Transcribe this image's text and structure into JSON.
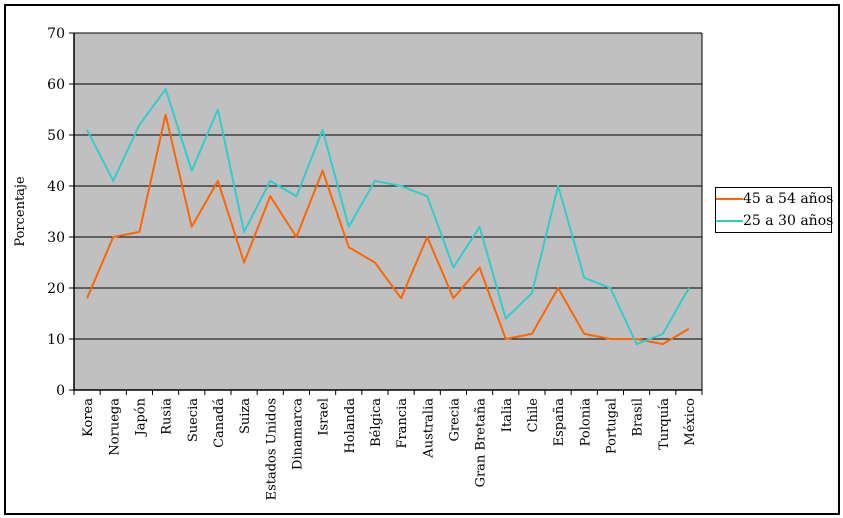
{
  "chart_data": {
    "type": "line",
    "title": "",
    "xlabel": "",
    "ylabel": "Porcentaje",
    "ylim": [
      0,
      70
    ],
    "yticks": [
      0,
      10,
      20,
      30,
      40,
      50,
      60,
      70
    ],
    "grid": "horizontal",
    "plot_bg": "#C0C0C0",
    "grid_color": "#000000",
    "legend_position": "right",
    "categories": [
      "Korea",
      "Noruega",
      "Japón",
      "Rusia",
      "Suecia",
      "Canadá",
      "Suiza",
      "Estados Unidos",
      "Dinamarca",
      "Israel",
      "Holanda",
      "Bélgica",
      "Francia",
      "Australia",
      "Grecia",
      "Gran Bretaña",
      "Italia",
      "Chile",
      "España",
      "Polonia",
      "Portugal",
      "Brasil",
      "Turquía",
      "México"
    ],
    "series": [
      {
        "name": "45 a 54 años",
        "color": "#FF6600",
        "values": [
          18,
          30,
          31,
          54,
          32,
          41,
          25,
          38,
          30,
          43,
          28,
          25,
          18,
          30,
          18,
          24,
          10,
          11,
          20,
          11,
          10,
          10,
          9,
          12
        ]
      },
      {
        "name": "25 a 30 años",
        "color": "#33CCCC",
        "values": [
          51,
          41,
          52,
          59,
          43,
          55,
          31,
          41,
          38,
          51,
          32,
          41,
          40,
          38,
          24,
          32,
          14,
          19,
          40,
          22,
          20,
          9,
          11,
          20
        ]
      }
    ]
  }
}
